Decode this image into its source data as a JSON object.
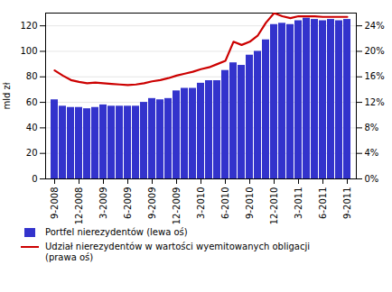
{
  "chart_data": {
    "type": "bar",
    "categories": [
      "9-2008",
      null,
      null,
      "12-2008",
      null,
      null,
      "3-2009",
      null,
      null,
      "6-2009",
      null,
      null,
      "9-2009",
      null,
      null,
      "12-2009",
      null,
      null,
      "3-2010",
      null,
      null,
      "6-2010",
      null,
      null,
      "9-2010",
      null,
      null,
      "12-2010",
      null,
      null,
      "3-2011",
      null,
      null,
      "6-2011",
      null,
      null,
      "9-2011"
    ],
    "series": [
      {
        "name": "Portfel nierezydentów (lewa oś)",
        "type": "bar",
        "color": "#3333cc",
        "values": [
          62,
          57,
          56,
          56,
          55,
          56,
          58,
          57,
          57,
          57,
          57,
          60,
          63,
          62,
          63,
          69,
          71,
          71,
          75,
          77,
          77,
          85,
          91,
          89,
          97,
          100,
          109,
          121,
          122,
          121,
          124,
          126,
          125,
          124,
          125,
          124,
          125
        ]
      },
      {
        "name": "Udział nierezydentów w wartości wyemitowanych obligacji\n(prawa oś)",
        "type": "line",
        "color": "#cc0000",
        "axis": "y2",
        "values": [
          17.0,
          16.2,
          15.5,
          15.2,
          15.0,
          15.1,
          15.0,
          14.9,
          14.8,
          14.7,
          14.8,
          15.0,
          15.3,
          15.5,
          15.8,
          16.2,
          16.5,
          16.8,
          17.2,
          17.5,
          18.0,
          18.5,
          21.5,
          21.0,
          21.5,
          22.5,
          24.5,
          26.0,
          25.5,
          25.2,
          25.5,
          25.5,
          25.5,
          25.4,
          25.4,
          25.4,
          25.4
        ]
      }
    ],
    "ylabel": "mld zł",
    "ylim": [
      0,
      130
    ],
    "yticks": [
      0,
      20,
      40,
      60,
      80,
      100,
      120
    ],
    "y2lim": [
      0,
      26
    ],
    "y2ticks": [
      {
        "value": 0,
        "label": "0%"
      },
      {
        "value": 4,
        "label": "4%"
      },
      {
        "value": 8,
        "label": "8%"
      },
      {
        "value": 12,
        "label": "12%"
      },
      {
        "value": 16,
        "label": "16%"
      },
      {
        "value": 20,
        "label": "20%"
      },
      {
        "value": 24,
        "label": "24%"
      }
    ],
    "grid": true,
    "legend": "lower left"
  }
}
